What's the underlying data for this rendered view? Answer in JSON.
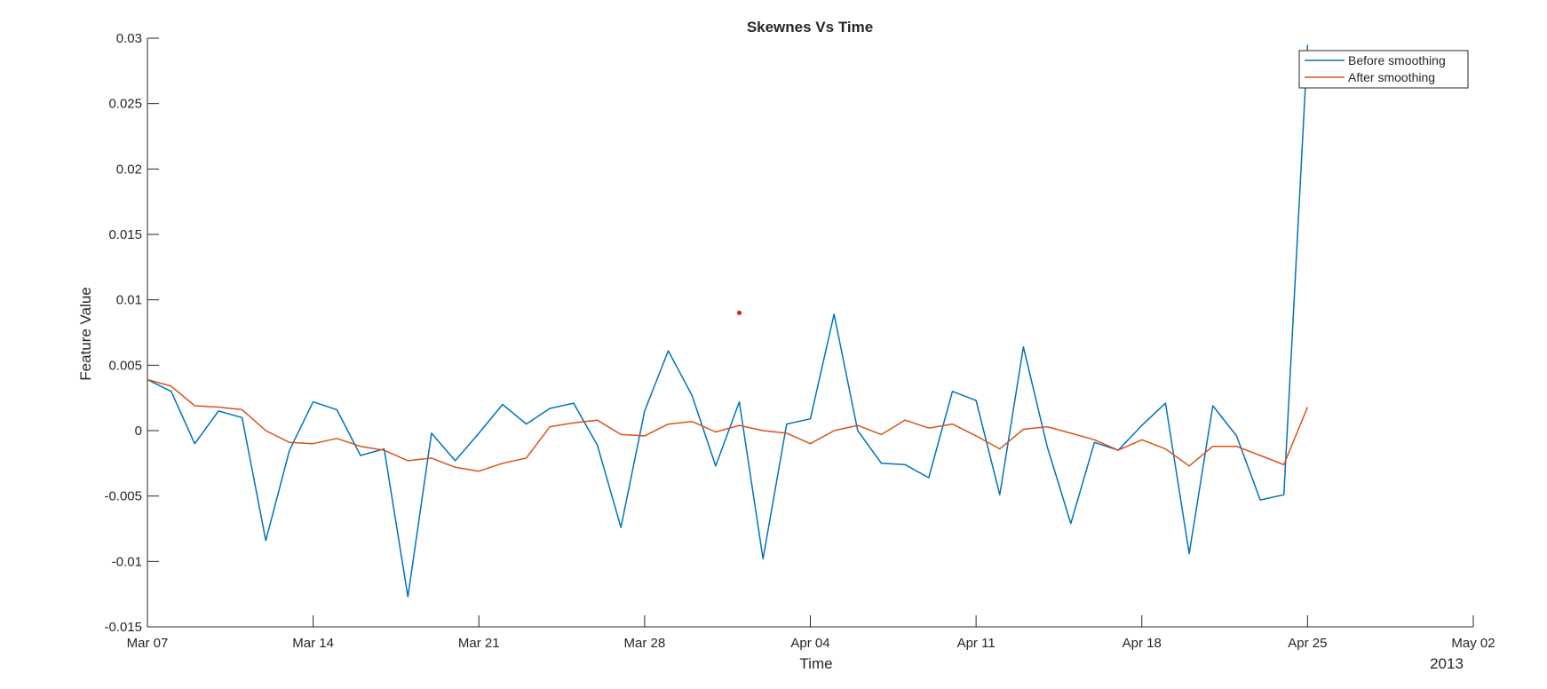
{
  "chart_data": {
    "type": "line",
    "title": "Skewnes Vs Time",
    "xlabel": "Time",
    "ylabel": "Feature Value",
    "year_label": "2013",
    "x_start": "2013-03-07",
    "x_step_days": 1,
    "xlim": [
      "2013-03-07",
      "2013-05-02"
    ],
    "ylim": [
      -0.015,
      0.03
    ],
    "x_ticks": [
      {
        "date": "2013-03-07",
        "label": "Mar 07"
      },
      {
        "date": "2013-03-14",
        "label": "Mar 14"
      },
      {
        "date": "2013-03-21",
        "label": "Mar 21"
      },
      {
        "date": "2013-03-28",
        "label": "Mar 28"
      },
      {
        "date": "2013-04-04",
        "label": "Apr 04"
      },
      {
        "date": "2013-04-11",
        "label": "Apr 11"
      },
      {
        "date": "2013-04-18",
        "label": "Apr 18"
      },
      {
        "date": "2013-04-25",
        "label": "Apr 25"
      },
      {
        "date": "2013-05-02",
        "label": "May 02"
      }
    ],
    "y_ticks": [
      {
        "value": 0.03,
        "label": "0.03"
      },
      {
        "value": 0.025,
        "label": "0.025"
      },
      {
        "value": 0.02,
        "label": "0.02"
      },
      {
        "value": 0.015,
        "label": "0.015"
      },
      {
        "value": 0.01,
        "label": "0.01"
      },
      {
        "value": 0.005,
        "label": "0.005"
      },
      {
        "value": 0,
        "label": "0"
      },
      {
        "value": -0.005,
        "label": "-0.005"
      },
      {
        "value": -0.01,
        "label": "-0.01"
      },
      {
        "value": -0.015,
        "label": "-0.015"
      }
    ],
    "grid": false,
    "legend_position": "top-right",
    "series": [
      {
        "name": "Before smoothing",
        "color": "#0072BD",
        "values": [
          0.0039,
          0.003,
          -0.001,
          0.0015,
          0.001,
          -0.0084,
          -0.0015,
          0.0022,
          0.0016,
          -0.0019,
          -0.0014,
          -0.0127,
          -0.0002,
          -0.0023,
          -0.0002,
          0.002,
          0.0005,
          0.0017,
          0.0021,
          -0.0011,
          -0.0074,
          0.0015,
          0.0061,
          0.0027,
          -0.0027,
          0.0022,
          -0.0098,
          0.0005,
          0.0009,
          0.0089,
          0.0,
          -0.0025,
          -0.0026,
          -0.0036,
          0.003,
          0.0023,
          -0.0049,
          0.0064,
          -0.0012,
          -0.0071,
          -0.0009,
          -0.0015,
          0.0004,
          0.0021,
          -0.0094,
          0.0019,
          -0.0004,
          -0.0053,
          -0.0049,
          0.0295
        ]
      },
      {
        "name": "After smoothing",
        "color": "#D95319",
        "values": [
          0.0039,
          0.0034,
          0.0019,
          0.0018,
          0.0016,
          0.0,
          -0.0009,
          -0.001,
          -0.0006,
          -0.0012,
          -0.0015,
          -0.0023,
          -0.0021,
          -0.0028,
          -0.0031,
          -0.0025,
          -0.0021,
          0.0003,
          0.0006,
          0.0008,
          -0.0003,
          -0.0004,
          0.0005,
          0.0007,
          -0.0001,
          0.0004,
          0.0,
          -0.0002,
          -0.001,
          0.0,
          0.0004,
          -0.0003,
          0.0008,
          0.0002,
          0.0005,
          -0.0004,
          -0.0014,
          0.0001,
          0.0003,
          -0.0002,
          -0.0007,
          -0.0015,
          -0.0007,
          -0.0014,
          -0.0027,
          -0.0012,
          -0.0012,
          -0.0019,
          -0.0026,
          0.0018
        ]
      }
    ],
    "markers": [
      {
        "date": "2013-04-01",
        "value": 0.009,
        "color": "#e81123"
      }
    ]
  }
}
